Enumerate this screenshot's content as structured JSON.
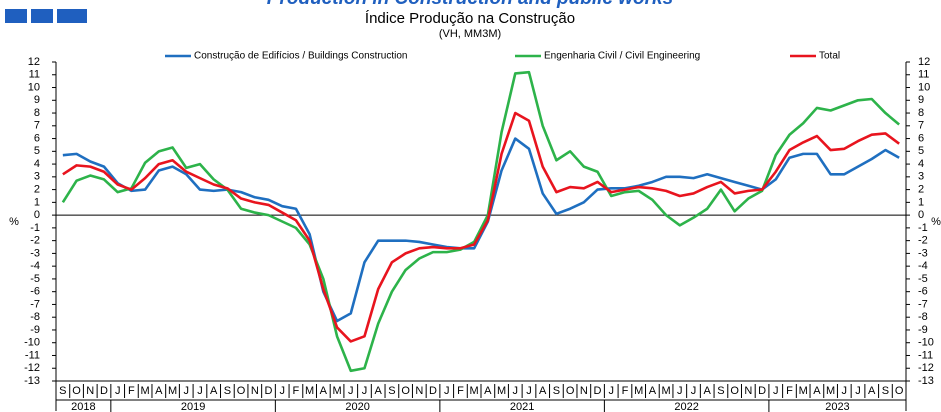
{
  "chart_data": {
    "type": "line",
    "title": "Production in Construction and public works",
    "subtitle": "Índice Produção na Construção",
    "subtitle2": "(VH, MM3M)",
    "y_label": "%",
    "y2_label": "%",
    "categories": [
      "S",
      "O",
      "N",
      "D",
      "J",
      "F",
      "M",
      "A",
      "M",
      "J",
      "J",
      "A",
      "S",
      "O",
      "N",
      "D",
      "J",
      "F",
      "M",
      "A",
      "M",
      "J",
      "J",
      "A",
      "S",
      "O",
      "N",
      "D",
      "J",
      "F",
      "M",
      "A",
      "M",
      "J",
      "J",
      "A",
      "S",
      "O",
      "N",
      "D",
      "J",
      "F",
      "M",
      "A",
      "M",
      "J",
      "J",
      "A",
      "S",
      "O",
      "N",
      "D",
      "J",
      "F",
      "M",
      "A",
      "M",
      "J",
      "J",
      "A",
      "S",
      "O"
    ],
    "years": [
      "2018",
      "2019",
      "2020",
      "2021",
      "2022",
      "2023"
    ],
    "ylim": [
      -13,
      12
    ],
    "yticks": [
      -13,
      -12,
      -11,
      -10,
      -9,
      -8,
      -7,
      -6,
      -5,
      -4,
      -3,
      -2,
      -1,
      0,
      1,
      2,
      3,
      4,
      5,
      6,
      7,
      8,
      9,
      10,
      11,
      12
    ],
    "grid": false,
    "series": [
      {
        "name": "Construção de Edifícios / Buildings Construction",
        "color": "#1f6fc0",
        "values": [
          4.7,
          4.8,
          4.2,
          3.8,
          2.5,
          1.9,
          2.0,
          3.5,
          3.8,
          3.2,
          2.0,
          1.9,
          2.0,
          1.8,
          1.4,
          1.2,
          0.7,
          0.5,
          -1.5,
          -6.0,
          -8.3,
          -7.7,
          -3.7,
          -2.0,
          -2.0,
          -2.0,
          -2.1,
          -2.3,
          -2.5,
          -2.6,
          -2.6,
          -0.5,
          3.5,
          6.0,
          5.2,
          1.7,
          0.1,
          0.5,
          1.0,
          2.0,
          2.1,
          2.1,
          2.3,
          2.6,
          3.0,
          3.0,
          2.9,
          3.2,
          2.9,
          2.6,
          2.3,
          2.0,
          2.8,
          4.5,
          4.8,
          4.8,
          3.2,
          3.2,
          3.8,
          4.4,
          5.1,
          4.5
        ]
      },
      {
        "name": "Engenharia Civil / Civil Engineering",
        "color": "#2db34a",
        "values": [
          1.0,
          2.7,
          3.1,
          2.8,
          1.8,
          2.1,
          4.1,
          5.0,
          5.3,
          3.7,
          4.0,
          2.8,
          2.0,
          0.5,
          0.2,
          0.0,
          -0.5,
          -1.0,
          -2.3,
          -5.0,
          -9.5,
          -12.2,
          -12.0,
          -8.5,
          -6.0,
          -4.3,
          -3.4,
          -2.9,
          -2.9,
          -2.7,
          -2.1,
          0.0,
          6.5,
          11.1,
          11.2,
          7.0,
          4.3,
          5.0,
          3.8,
          3.4,
          1.5,
          1.8,
          1.9,
          1.2,
          0.0,
          -0.8,
          -0.2,
          0.5,
          2.0,
          0.3,
          1.3,
          1.9,
          4.7,
          6.3,
          7.2,
          8.4,
          8.2,
          8.6,
          9.0,
          9.1,
          8.0,
          7.1
        ]
      },
      {
        "name": "Total",
        "color": "#e8141e",
        "values": [
          3.2,
          3.9,
          3.8,
          3.4,
          2.4,
          2.0,
          2.9,
          4.0,
          4.3,
          3.4,
          2.9,
          2.4,
          2.1,
          1.3,
          1.0,
          0.8,
          0.2,
          -0.4,
          -2.0,
          -5.8,
          -8.8,
          -9.9,
          -9.5,
          -5.8,
          -3.7,
          -3.0,
          -2.6,
          -2.5,
          -2.6,
          -2.6,
          -2.3,
          -0.4,
          4.8,
          8.0,
          7.4,
          3.8,
          1.8,
          2.2,
          2.1,
          2.6,
          1.8,
          2.0,
          2.2,
          2.1,
          1.9,
          1.5,
          1.7,
          2.2,
          2.6,
          1.7,
          1.9,
          2.0,
          3.4,
          5.1,
          5.7,
          6.2,
          5.1,
          5.2,
          5.8,
          6.3,
          6.4,
          5.6
        ]
      }
    ]
  }
}
